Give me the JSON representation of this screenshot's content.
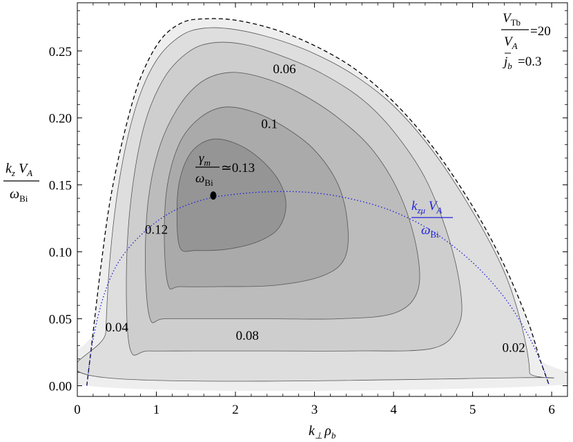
{
  "chart_data": {
    "type": "contour",
    "xlabel": "k⊥ρb",
    "ylabel": "kz VA / ωBi",
    "xlim": [
      0,
      6.2
    ],
    "ylim": [
      -0.008,
      0.286
    ],
    "xticks": [
      0,
      1,
      2,
      3,
      4,
      5,
      6
    ],
    "yticks": [
      0.0,
      0.05,
      0.1,
      0.15,
      0.2,
      0.25
    ],
    "xtick_labels": [
      "0",
      "1",
      "2",
      "3",
      "4",
      "5",
      "6"
    ],
    "ytick_labels": [
      "0.00",
      "0.05",
      "0.10",
      "0.15",
      "0.20",
      "0.25"
    ],
    "parameters": {
      "vtb_num": "V",
      "vtb_num_sub": "Tb",
      "vtb_den": "V",
      "vtb_den_sub": "A",
      "vtb_value": "=20",
      "jb_symbol": "j",
      "jb_sub": "b",
      "jb_value": "=0.3"
    },
    "contour_levels": [
      0.02,
      0.04,
      0.06,
      0.08,
      0.1,
      0.12
    ],
    "contour_labels": [
      {
        "text": "0.02",
        "x": 5.52,
        "y": 0.029
      },
      {
        "text": "0.04",
        "x": 0.5,
        "y": 0.044
      },
      {
        "text": "0.06",
        "x": 2.62,
        "y": 0.237
      },
      {
        "text": "0.08",
        "x": 2.15,
        "y": 0.038
      },
      {
        "text": "0.1",
        "x": 2.43,
        "y": 0.196
      },
      {
        "text": "0.12",
        "x": 1.0,
        "y": 0.117
      }
    ],
    "contours": [
      {
        "level": 0.0,
        "fill": "#eeeeee",
        "points": [
          [
            0.12,
            0.0
          ],
          [
            0.2,
            0.04
          ],
          [
            0.3,
            0.09
          ],
          [
            0.42,
            0.14
          ],
          [
            0.6,
            0.19
          ],
          [
            0.8,
            0.23
          ],
          [
            1.05,
            0.258
          ],
          [
            1.32,
            0.271
          ],
          [
            1.6,
            0.274
          ],
          [
            2.0,
            0.273
          ],
          [
            2.5,
            0.266
          ],
          [
            3.0,
            0.254
          ],
          [
            3.5,
            0.237
          ],
          [
            4.0,
            0.212
          ],
          [
            4.5,
            0.178
          ],
          [
            5.0,
            0.134
          ],
          [
            5.4,
            0.09
          ],
          [
            5.7,
            0.048
          ],
          [
            5.85,
            0.02
          ],
          [
            5.97,
            0.0
          ]
        ]
      },
      {
        "level": 0.02,
        "fill": "#dedede",
        "points": [
          [
            0.36,
            0.006
          ],
          [
            0.36,
            0.04
          ],
          [
            0.42,
            0.1
          ],
          [
            0.55,
            0.16
          ],
          [
            0.75,
            0.21
          ],
          [
            1.0,
            0.243
          ],
          [
            1.3,
            0.261
          ],
          [
            1.6,
            0.267
          ],
          [
            2.0,
            0.266
          ],
          [
            2.5,
            0.259
          ],
          [
            3.0,
            0.248
          ],
          [
            3.5,
            0.232
          ],
          [
            4.0,
            0.209
          ],
          [
            4.5,
            0.175
          ],
          [
            5.0,
            0.13
          ],
          [
            5.4,
            0.085
          ],
          [
            5.62,
            0.045
          ],
          [
            5.72,
            0.01
          ],
          [
            5.6,
            0.006
          ]
        ]
      },
      {
        "level": 0.04,
        "fill": "#cecece",
        "points": [
          [
            0.67,
            0.027
          ],
          [
            0.62,
            0.08
          ],
          [
            0.68,
            0.14
          ],
          [
            0.85,
            0.195
          ],
          [
            1.1,
            0.23
          ],
          [
            1.4,
            0.249
          ],
          [
            1.7,
            0.256
          ],
          [
            2.1,
            0.255
          ],
          [
            2.6,
            0.246
          ],
          [
            3.1,
            0.233
          ],
          [
            3.6,
            0.214
          ],
          [
            4.0,
            0.19
          ],
          [
            4.4,
            0.155
          ],
          [
            4.7,
            0.11
          ],
          [
            4.85,
            0.07
          ],
          [
            4.82,
            0.045
          ],
          [
            4.5,
            0.028
          ],
          [
            3.5,
            0.026
          ],
          [
            2.5,
            0.026
          ],
          [
            1.5,
            0.026
          ],
          [
            0.9,
            0.026
          ]
        ]
      },
      {
        "level": 0.06,
        "fill": "#bcbcbc",
        "points": [
          [
            0.92,
            0.05
          ],
          [
            0.86,
            0.09
          ],
          [
            0.9,
            0.14
          ],
          [
            1.05,
            0.18
          ],
          [
            1.3,
            0.21
          ],
          [
            1.6,
            0.228
          ],
          [
            1.95,
            0.234
          ],
          [
            2.35,
            0.23
          ],
          [
            2.8,
            0.219
          ],
          [
            3.3,
            0.2
          ],
          [
            3.75,
            0.175
          ],
          [
            4.1,
            0.14
          ],
          [
            4.3,
            0.1
          ],
          [
            4.3,
            0.07
          ],
          [
            4.0,
            0.054
          ],
          [
            3.3,
            0.05
          ],
          [
            2.5,
            0.05
          ],
          [
            1.7,
            0.05
          ],
          [
            1.1,
            0.05
          ]
        ]
      },
      {
        "level": 0.08,
        "fill": "#aaaaaa",
        "points": [
          [
            1.15,
            0.075
          ],
          [
            1.1,
            0.11
          ],
          [
            1.14,
            0.15
          ],
          [
            1.3,
            0.182
          ],
          [
            1.55,
            0.2
          ],
          [
            1.85,
            0.208
          ],
          [
            2.2,
            0.205
          ],
          [
            2.6,
            0.194
          ],
          [
            3.0,
            0.176
          ],
          [
            3.3,
            0.15
          ],
          [
            3.42,
            0.12
          ],
          [
            3.38,
            0.095
          ],
          [
            3.1,
            0.082
          ],
          [
            2.5,
            0.075
          ],
          [
            1.8,
            0.074
          ],
          [
            1.3,
            0.074
          ]
        ]
      },
      {
        "level": 0.1,
        "fill": "#959595",
        "points": [
          [
            1.3,
            0.103
          ],
          [
            1.26,
            0.13
          ],
          [
            1.3,
            0.155
          ],
          [
            1.45,
            0.175
          ],
          [
            1.7,
            0.184
          ],
          [
            2.0,
            0.181
          ],
          [
            2.3,
            0.17
          ],
          [
            2.55,
            0.153
          ],
          [
            2.64,
            0.135
          ],
          [
            2.55,
            0.118
          ],
          [
            2.3,
            0.108
          ],
          [
            1.9,
            0.102
          ],
          [
            1.5,
            0.101
          ]
        ]
      }
    ],
    "boundary_line": {
      "style": "dashed",
      "points": [
        [
          0.12,
          0.0
        ],
        [
          0.2,
          0.04
        ],
        [
          0.3,
          0.09
        ],
        [
          0.42,
          0.14
        ],
        [
          0.6,
          0.19
        ],
        [
          0.8,
          0.23
        ],
        [
          1.05,
          0.258
        ],
        [
          1.32,
          0.271
        ],
        [
          1.6,
          0.274
        ],
        [
          2.0,
          0.273
        ],
        [
          2.5,
          0.266
        ],
        [
          3.0,
          0.254
        ],
        [
          3.5,
          0.237
        ],
        [
          4.0,
          0.212
        ],
        [
          4.5,
          0.178
        ],
        [
          5.0,
          0.134
        ],
        [
          5.4,
          0.09
        ],
        [
          5.7,
          0.048
        ],
        [
          5.85,
          0.02
        ],
        [
          5.97,
          0.0
        ]
      ]
    },
    "max_growth_curve": {
      "color": "#2222dd",
      "style": "dotted",
      "points": [
        [
          0.12,
          0.0
        ],
        [
          0.2,
          0.035
        ],
        [
          0.35,
          0.07
        ],
        [
          0.55,
          0.095
        ],
        [
          0.85,
          0.115
        ],
        [
          1.2,
          0.13
        ],
        [
          1.6,
          0.139
        ],
        [
          2.0,
          0.143
        ],
        [
          2.5,
          0.145
        ],
        [
          3.0,
          0.144
        ],
        [
          3.5,
          0.139
        ],
        [
          4.0,
          0.13
        ],
        [
          4.5,
          0.115
        ],
        [
          5.0,
          0.092
        ],
        [
          5.4,
          0.066
        ],
        [
          5.7,
          0.038
        ],
        [
          5.88,
          0.015
        ],
        [
          5.97,
          0.0
        ]
      ]
    },
    "max_point": {
      "x": 1.72,
      "y": 0.142
    },
    "max_annotation": {
      "num": "γ",
      "num_sub": "m",
      "den": "ω",
      "den_sub": "Bi",
      "value": "≃0.13"
    },
    "curve_annotation": {
      "num": "k",
      "num_sub": "zμ",
      "num_rest": " V",
      "num_rest_sub": "A",
      "den": "ω",
      "den_sub": "Bi"
    },
    "ylabel_parts": {
      "num": "k",
      "num_sub": "z",
      "num_rest": " V",
      "num_rest_sub": "A",
      "den": "ω",
      "den_sub": "Bi"
    },
    "xlabel_parts": {
      "main": "k",
      "sub": "⊥",
      "rest": "ρ",
      "rest_sub": "b"
    }
  }
}
